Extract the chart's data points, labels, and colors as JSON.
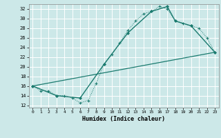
{
  "bg_color": "#cce8e8",
  "grid_color": "#ffffff",
  "line_color": "#1a7a6e",
  "xlabel": "Humidex (Indice chaleur)",
  "xlim": [
    -0.5,
    23.5
  ],
  "ylim": [
    11.5,
    33
  ],
  "yticks": [
    12,
    14,
    16,
    18,
    20,
    22,
    24,
    26,
    28,
    30,
    32
  ],
  "xticks": [
    0,
    1,
    2,
    3,
    4,
    5,
    6,
    7,
    8,
    9,
    10,
    11,
    12,
    13,
    14,
    15,
    16,
    17,
    18,
    19,
    20,
    21,
    22,
    23
  ],
  "curve1_x": [
    0,
    1,
    2,
    3,
    4,
    5,
    6,
    7,
    8,
    9,
    10,
    11,
    12,
    13,
    14,
    15,
    16,
    17,
    18,
    19,
    20,
    21,
    22,
    23
  ],
  "curve1_y": [
    16.0,
    15.0,
    15.0,
    14.0,
    14.0,
    13.5,
    12.5,
    13.0,
    16.5,
    20.5,
    22.5,
    25.0,
    27.5,
    29.5,
    31.0,
    31.5,
    32.5,
    32.0,
    29.5,
    29.0,
    28.5,
    28.0,
    26.0,
    23.0
  ],
  "curve2_x": [
    0,
    3,
    6,
    9,
    12,
    15,
    17,
    18,
    20,
    23
  ],
  "curve2_y": [
    16.0,
    14.0,
    13.5,
    20.5,
    27.0,
    31.5,
    32.5,
    29.5,
    28.5,
    23.0
  ],
  "curve3_x": [
    0,
    23
  ],
  "curve3_y": [
    16.0,
    23.0
  ]
}
